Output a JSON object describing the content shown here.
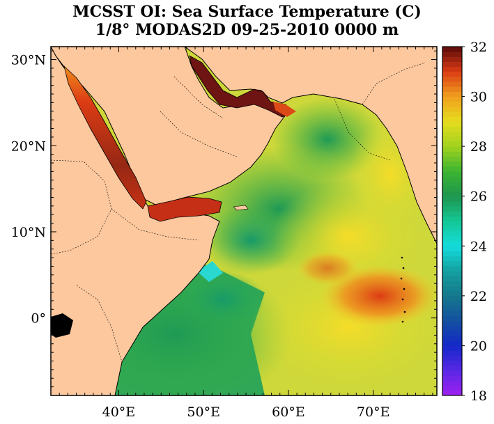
{
  "title": {
    "line1": "MCSST OI:  Sea Surface Temperature (C)",
    "line2": "1/8° MODAS2D 09-25-2010 0000 m"
  },
  "map": {
    "variable": "Sea Surface Temperature",
    "units": "C",
    "product": "MCSST OI / MODAS2D",
    "resolution": "1/8°",
    "date": "09-25-2010",
    "depth": "0000 m",
    "lon_range": [
      32,
      77.5
    ],
    "lat_range": [
      -9,
      31.5
    ],
    "lat_ticks": [
      {
        "value": 30,
        "label": "30°N"
      },
      {
        "value": 20,
        "label": "20°N"
      },
      {
        "value": 10,
        "label": "10°N"
      },
      {
        "value": 0,
        "label": "0°"
      }
    ],
    "lon_ticks": [
      {
        "value": 40,
        "label": "40°E"
      },
      {
        "value": 50,
        "label": "50°E"
      },
      {
        "value": 60,
        "label": "60°E"
      },
      {
        "value": 70,
        "label": "70°E"
      }
    ],
    "land_color": "#fdc89e"
  },
  "colorbar": {
    "min": 18,
    "max": 32,
    "labels": [
      {
        "value": 32,
        "label": "32"
      },
      {
        "value": 30,
        "label": "30"
      },
      {
        "value": 28,
        "label": "28"
      },
      {
        "value": 26,
        "label": "26"
      },
      {
        "value": 24,
        "label": "24"
      },
      {
        "value": 22,
        "label": "22"
      },
      {
        "value": 20,
        "label": "20"
      },
      {
        "value": 18,
        "label": "18"
      }
    ]
  }
}
